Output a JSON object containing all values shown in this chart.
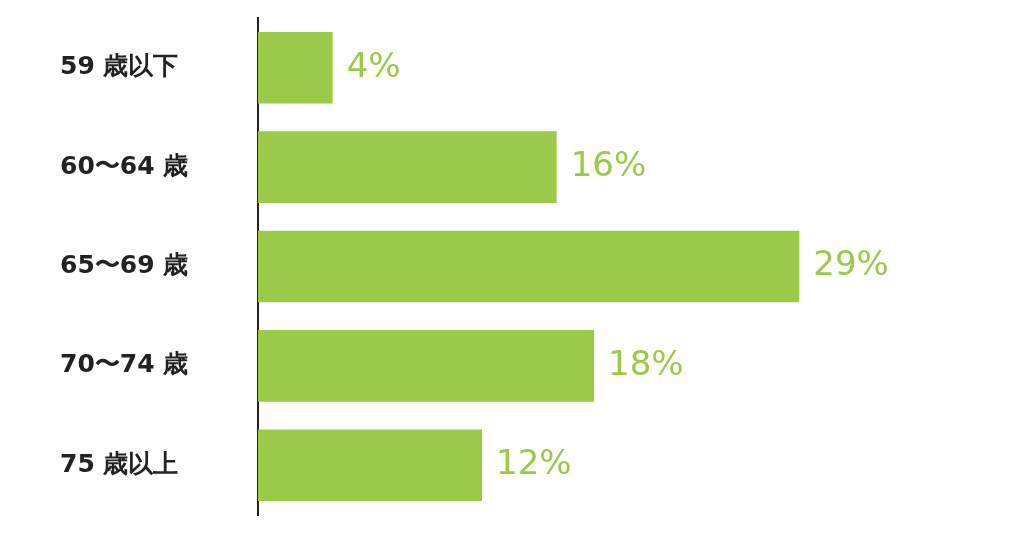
{
  "chart_data": {
    "type": "bar",
    "orientation": "horizontal",
    "categories": [
      "59 歳以下",
      "60〜64 歳",
      "65〜69 歳",
      "70〜74 歳",
      "75 歳以上"
    ],
    "values": [
      4,
      16,
      29,
      18,
      12
    ],
    "value_labels": [
      "4%",
      "16%",
      "29%",
      "18%",
      "12%"
    ],
    "color": "#9bc94a",
    "tick_labels": "y",
    "grid": false,
    "legend": false
  }
}
